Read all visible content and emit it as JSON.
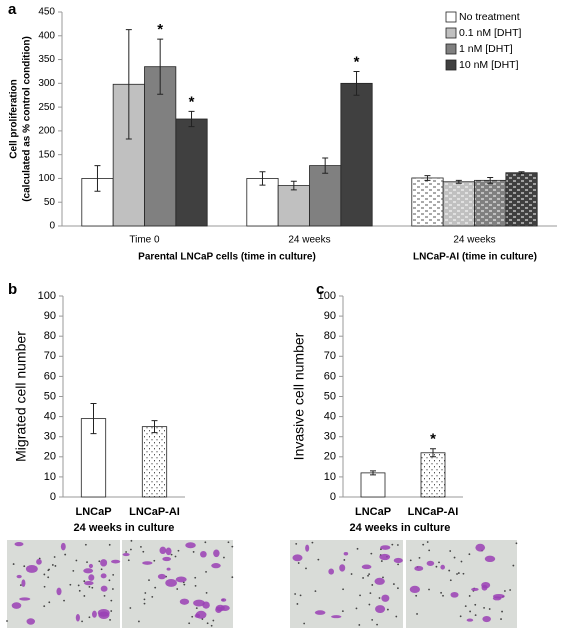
{
  "chart_data": [
    {
      "type": "bar",
      "panel": "a",
      "ylabel": [
        "Cell proliferation",
        "(calculated as % control condition)"
      ],
      "categories": [
        "Time 0",
        "24 weeks",
        "24 weeks"
      ],
      "group_labels": [
        "Parental LNCaP cells (time in culture)",
        "LNCaP-AI (time in culture)"
      ],
      "series": [
        {
          "name": "No treatment",
          "color": "#ffffff",
          "values": [
            100,
            100,
            101
          ],
          "errors": [
            27,
            14,
            5
          ],
          "markers": [
            null,
            null,
            null
          ]
        },
        {
          "name": "0.1 nM [DHT]",
          "color": "#c0c0c0",
          "values": [
            298,
            85,
            93
          ],
          "errors": [
            115,
            9,
            3
          ],
          "markers": [
            null,
            null,
            null
          ]
        },
        {
          "name": "1 nM [DHT]",
          "color": "#808080",
          "values": [
            335,
            127,
            96
          ],
          "errors": [
            58,
            16,
            6
          ],
          "markers": [
            "*",
            null,
            null
          ]
        },
        {
          "name": "10 nM [DHT]",
          "color": "#404040",
          "values": [
            225,
            300,
            112
          ],
          "errors": [
            16,
            25,
            2
          ],
          "markers": [
            "*",
            "*",
            null
          ]
        }
      ],
      "ylim": [
        0,
        450
      ],
      "yticks": [
        0,
        50,
        100,
        150,
        200,
        250,
        300,
        350,
        400,
        450
      ],
      "legend": "top-right"
    },
    {
      "type": "bar",
      "panel": "b",
      "ylabel": "Migrated cell number",
      "xlabel": "24 weeks in culture",
      "categories": [
        "LNCaP",
        "LNCaP-AI"
      ],
      "values": [
        39,
        35
      ],
      "errors": [
        7.5,
        3
      ],
      "markers": [
        null,
        null
      ],
      "color": "#ffffff",
      "ylim": [
        0,
        100
      ],
      "yticks": [
        0,
        10,
        20,
        30,
        40,
        50,
        60,
        70,
        80,
        90,
        100
      ]
    },
    {
      "type": "bar",
      "panel": "c",
      "ylabel": "Invasive cell number",
      "xlabel": "24 weeks in culture",
      "categories": [
        "LNCaP",
        "LNCaP-AI"
      ],
      "values": [
        12,
        22
      ],
      "errors": [
        1,
        2
      ],
      "markers": [
        null,
        "*"
      ],
      "color": "#ffffff",
      "ylim": [
        0,
        100
      ],
      "yticks": [
        0,
        10,
        20,
        30,
        40,
        50,
        60,
        70,
        80,
        90,
        100
      ]
    }
  ]
}
